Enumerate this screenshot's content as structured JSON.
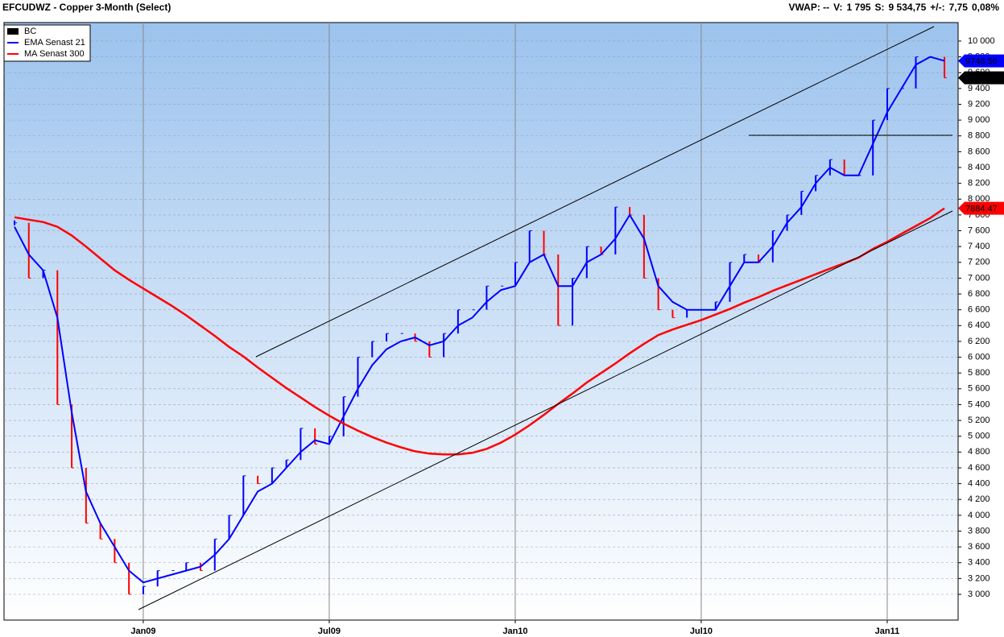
{
  "chart_data": {
    "type": "price",
    "title": "EFCUDWZ - Copper 3-Month (Select)",
    "stats": [
      {
        "text": "VWAP: --",
        "color": "#000000"
      },
      {
        "text": "V:",
        "color": "#000000"
      },
      {
        "text": "1 795",
        "color": "#0000ff"
      },
      {
        "text": "S:",
        "color": "#000000"
      },
      {
        "text": "9 534,75",
        "color": "#0000ff"
      },
      {
        "text": "+/-:",
        "color": "#000000"
      },
      {
        "text": "7,75",
        "color": "#0000ff"
      },
      {
        "text": "0,08%",
        "color": "#0000ff"
      }
    ],
    "legend": "upper left",
    "categories": [
      null,
      null,
      null,
      null,
      null,
      null,
      null,
      null,
      null,
      "Jan09",
      null,
      null,
      null,
      null,
      null,
      null,
      null,
      null,
      null,
      null,
      null,
      null,
      "Jul09",
      null,
      null,
      null,
      null,
      null,
      null,
      null,
      null,
      null,
      null,
      null,
      null,
      "Jan10",
      null,
      null,
      null,
      null,
      null,
      null,
      null,
      null,
      null,
      null,
      null,
      null,
      "Jul10",
      null,
      null,
      null,
      null,
      null,
      null,
      null,
      null,
      null,
      null,
      null,
      null,
      "Jan11",
      null,
      null,
      null,
      null
    ],
    "series": [
      {
        "name": "BC",
        "color": "#000000",
        "up_color": "#0000ff",
        "down_color": "#ff0000",
        "values": [
          7700,
          7000,
          7100,
          5400,
          4600,
          3900,
          3700,
          3400,
          3000,
          3100,
          3300,
          3300,
          3400,
          3300,
          3700,
          4000,
          4500,
          4400,
          4600,
          4700,
          5100,
          4900,
          5000,
          5500,
          6000,
          6200,
          6300,
          6300,
          6200,
          6000,
          6300,
          6600,
          6600,
          6900,
          6900,
          7200,
          7600,
          7300,
          6400,
          7000,
          7400,
          7300,
          7900,
          7800,
          7000,
          6600,
          6500,
          6600,
          6600,
          6700,
          7200,
          7300,
          7200,
          7600,
          7800,
          8100,
          8300,
          8500,
          8300,
          8300,
          9000,
          9400,
          9400,
          9800,
          9800,
          9534.75
        ]
      },
      {
        "name": "EMA  Senast 21",
        "color": "#0000ff",
        "values": [
          7650,
          7300,
          7100,
          6500,
          5300,
          4300,
          3900,
          3600,
          3300,
          3150,
          3200,
          3250,
          3300,
          3350,
          3500,
          3700,
          4000,
          4300,
          4400,
          4600,
          4800,
          4950,
          4900,
          5250,
          5600,
          5900,
          6100,
          6200,
          6250,
          6150,
          6200,
          6400,
          6500,
          6700,
          6850,
          6900,
          7200,
          7300,
          6900,
          6900,
          7200,
          7300,
          7500,
          7800,
          7500,
          6900,
          6700,
          6600,
          6600,
          6600,
          6900,
          7200,
          7200,
          7400,
          7700,
          7900,
          8200,
          8400,
          8300,
          8300,
          8700,
          9100,
          9400,
          9700,
          9800,
          9748.56
        ]
      },
      {
        "name": "MA  Senast 300",
        "color": "#ff0000",
        "values": [
          7770,
          7740,
          7710,
          7650,
          7540,
          7400,
          7250,
          7100,
          6980,
          6870,
          6760,
          6650,
          6530,
          6400,
          6270,
          6130,
          6010,
          5870,
          5740,
          5610,
          5490,
          5370,
          5260,
          5160,
          5070,
          4990,
          4920,
          4860,
          4810,
          4780,
          4770,
          4770,
          4790,
          4840,
          4920,
          5020,
          5140,
          5270,
          5410,
          5540,
          5680,
          5800,
          5920,
          6050,
          6170,
          6280,
          6350,
          6410,
          6470,
          6540,
          6610,
          6690,
          6760,
          6840,
          6910,
          6980,
          7050,
          7120,
          7190,
          7260,
          7370,
          7460,
          7560,
          7660,
          7760,
          7884.47
        ]
      }
    ],
    "price_markers": [
      {
        "value": 9748.56,
        "label": "9748,56",
        "color": "#0000ff"
      },
      {
        "value": 9534.75,
        "label": "9534,75",
        "color": "#000000"
      },
      {
        "value": 7884.47,
        "label": "7884,47",
        "color": "#ff0000"
      }
    ],
    "ylim": [
      2674,
      10234
    ],
    "yticks": [
      {
        "value": 3000,
        "label": "3 000"
      },
      {
        "value": 3200,
        "label": "3 200"
      },
      {
        "value": 3400,
        "label": "3 400"
      },
      {
        "value": 3600,
        "label": "3 600"
      },
      {
        "value": 3800,
        "label": "3 800"
      },
      {
        "value": 4000,
        "label": "4 000"
      },
      {
        "value": 4200,
        "label": "4 200"
      },
      {
        "value": 4400,
        "label": "4 400"
      },
      {
        "value": 4600,
        "label": "4 600"
      },
      {
        "value": 4800,
        "label": "4 800"
      },
      {
        "value": 5000,
        "label": "5 000"
      },
      {
        "value": 5200,
        "label": "5 200"
      },
      {
        "value": 5400,
        "label": "5 400"
      },
      {
        "value": 5600,
        "label": "5 600"
      },
      {
        "value": 5800,
        "label": "5 800"
      },
      {
        "value": 6000,
        "label": "6 000"
      },
      {
        "value": 6200,
        "label": "6 200"
      },
      {
        "value": 6400,
        "label": "6 400"
      },
      {
        "value": 6600,
        "label": "6 600"
      },
      {
        "value": 6800,
        "label": "6 800"
      },
      {
        "value": 7000,
        "label": "7 000"
      },
      {
        "value": 7200,
        "label": "7 200"
      },
      {
        "value": 7400,
        "label": "7 400"
      },
      {
        "value": 7600,
        "label": "7 600"
      },
      {
        "value": 7800,
        "label": "7 800"
      },
      {
        "value": 8000,
        "label": "8 000"
      },
      {
        "value": 8200,
        "label": "8 200"
      },
      {
        "value": 8400,
        "label": "8 400"
      },
      {
        "value": 8600,
        "label": "8 600"
      },
      {
        "value": 8800,
        "label": "8 800"
      },
      {
        "value": 9000,
        "label": "9 000"
      },
      {
        "value": 9200,
        "label": "9 200"
      },
      {
        "value": 9400,
        "label": "9 400"
      },
      {
        "value": 9600,
        "label": "9 600"
      },
      {
        "value": 9800,
        "label": "9 800"
      },
      {
        "value": 10000,
        "label": "10 000"
      }
    ],
    "grid": true
  }
}
